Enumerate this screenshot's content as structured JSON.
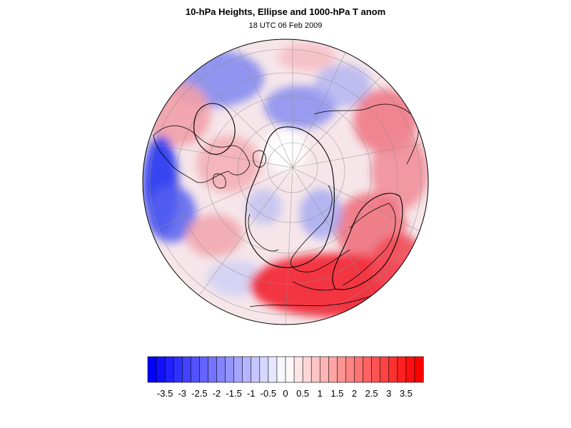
{
  "title": "10-hPa Heights, Ellipse and 1000-hPa T anom",
  "subtitle": "18 UTC 06 Feb 2009",
  "colorbar": {
    "ticks": [
      "-3.5",
      "-3",
      "-2.5",
      "-2",
      "-1.5",
      "-1",
      "-0.5",
      "0",
      "0.5",
      "1",
      "1.5",
      "2",
      "2.5",
      "3",
      "3.5"
    ],
    "min": -4,
    "max": 4,
    "step": 0.25,
    "negative_color": "#0000ff",
    "positive_color": "#ff0000",
    "neutral_color": "#ffffff"
  },
  "map": {
    "projection": "orthographic",
    "region": "Northern Hemisphere",
    "graticule": true,
    "ocean_background": "#ffffff",
    "coastline_color": "#000000"
  }
}
